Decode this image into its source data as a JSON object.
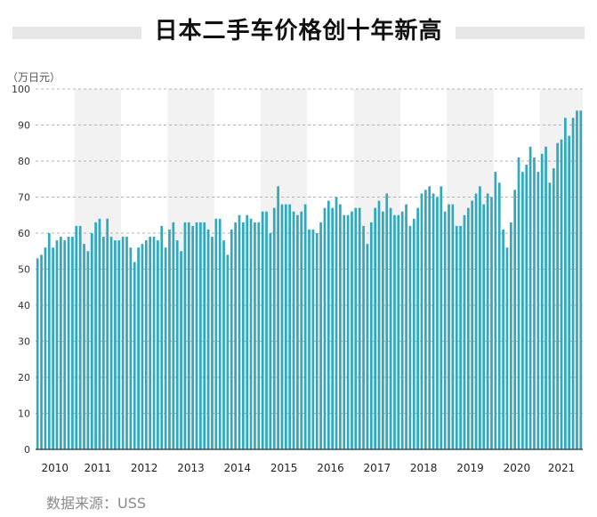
{
  "title": "日本二手车价格创十年新高",
  "unit": "（万日元）",
  "source": "数据来源：USS",
  "colors": {
    "bar": "#2fa9bd",
    "band_alt": "#f2f2f2",
    "grid": "#9a9a9a",
    "axis": "#333333"
  },
  "chart_data": {
    "type": "bar",
    "title": "日本二手车价格创十年新高",
    "ylabel": "（万日元）",
    "xlabel": "",
    "ylim": [
      0,
      100
    ],
    "yticks": [
      0,
      10,
      20,
      30,
      40,
      50,
      60,
      70,
      80,
      90,
      100
    ],
    "grid": true,
    "legend": "none",
    "years": [
      {
        "label": "2010",
        "values": [
          53,
          54,
          56,
          60,
          56,
          58,
          59,
          58,
          59,
          59
        ]
      },
      {
        "label": "2011",
        "values": [
          62,
          62,
          57,
          55,
          60,
          63,
          64,
          59,
          64,
          59,
          58,
          58
        ]
      },
      {
        "label": "2012",
        "values": [
          59,
          59,
          56,
          52,
          56,
          57,
          58,
          59,
          59,
          58,
          62,
          56
        ]
      },
      {
        "label": "2013",
        "values": [
          61,
          63,
          58,
          55,
          63,
          63,
          62,
          63,
          63,
          63,
          61,
          59
        ]
      },
      {
        "label": "2014",
        "values": [
          64,
          64,
          58,
          54,
          61,
          63,
          65,
          63,
          65,
          64,
          63,
          63
        ]
      },
      {
        "label": "2015",
        "values": [
          66,
          66,
          60,
          67,
          73,
          68,
          68,
          68,
          66,
          65,
          66,
          68
        ]
      },
      {
        "label": "2016",
        "values": [
          61,
          61,
          60,
          63,
          67,
          69,
          67,
          70,
          68,
          65,
          65,
          66
        ]
      },
      {
        "label": "2017",
        "values": [
          67,
          67,
          62,
          57,
          63,
          67,
          69,
          66,
          71,
          67,
          65,
          65
        ]
      },
      {
        "label": "2018",
        "values": [
          66,
          68,
          62,
          64,
          67,
          71,
          72,
          73,
          71,
          70,
          73,
          66
        ]
      },
      {
        "label": "2019",
        "values": [
          68,
          68,
          62,
          62,
          65,
          67,
          69,
          71,
          73,
          68,
          71,
          70
        ]
      },
      {
        "label": "2020",
        "values": [
          77,
          74,
          61,
          56,
          63,
          72,
          81,
          77,
          79,
          84,
          81,
          77
        ]
      },
      {
        "label": "2021",
        "values": [
          82,
          84,
          74,
          78,
          85,
          86,
          92,
          87,
          92,
          94,
          94
        ]
      }
    ]
  }
}
